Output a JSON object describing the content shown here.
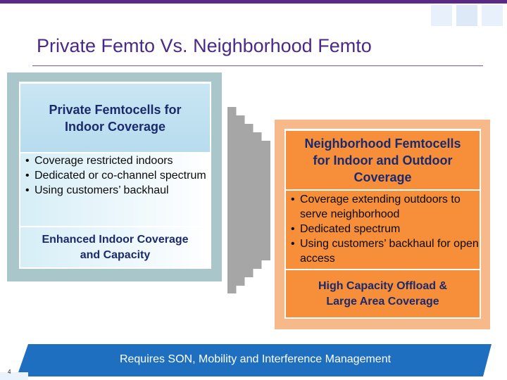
{
  "slide": {
    "title": "Private Femto Vs. Neighborhood Femto",
    "page_number": "4"
  },
  "left_panel": {
    "heading": "Private Femtocells for\nIndoor Coverage",
    "bullets": [
      "Coverage restricted indoors",
      "Dedicated or co-channel spectrum",
      "Using customers’ backhaul"
    ],
    "footer": "Enhanced Indoor Coverage\nand Capacity"
  },
  "right_panel": {
    "heading": "Neighborhood Femtocells\nfor Indoor and Outdoor\nCoverage",
    "bullets": [
      "Coverage extending outdoors to serve neighborhood",
      "Dedicated spectrum",
      "Using customers’ backhaul for open access"
    ],
    "footer": "High Capacity Offload &\nLarge Area Coverage"
  },
  "banner": {
    "text": "Requires SON, Mobility and Interference Management"
  },
  "colors": {
    "title": "#4a2a86",
    "left_frame": "#a9c7ca",
    "right_fill": "#f68e3a",
    "banner": "#1e6fc0"
  }
}
